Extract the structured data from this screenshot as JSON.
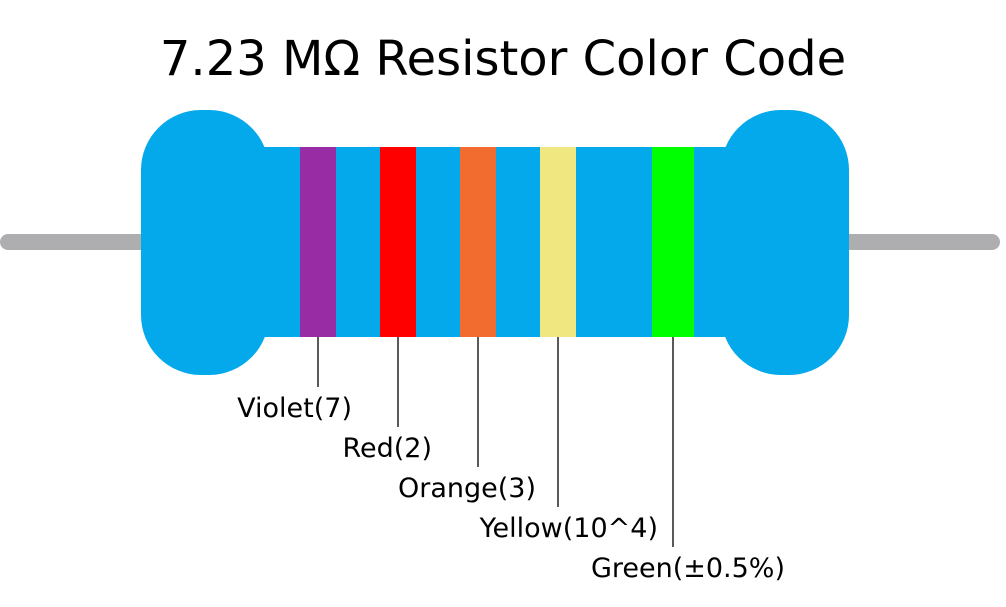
{
  "title": "7.23 MΩ Resistor Color Code",
  "colors": {
    "body": "#03a9eb",
    "lead": "#aeaeb0",
    "leader_line": "#000000"
  },
  "bands": [
    {
      "name": "Violet",
      "color": "#982ca4",
      "label": "Violet(7)"
    },
    {
      "name": "Red",
      "color": "#ff0000",
      "label": "Red(2)"
    },
    {
      "name": "Orange",
      "color": "#f26c30",
      "label": "Orange(3)"
    },
    {
      "name": "Yellow",
      "color": "#f1e780",
      "label": "Yellow(10^4)"
    },
    {
      "name": "Green",
      "color": "#00ff00",
      "label": "Green(±0.5%)"
    }
  ]
}
